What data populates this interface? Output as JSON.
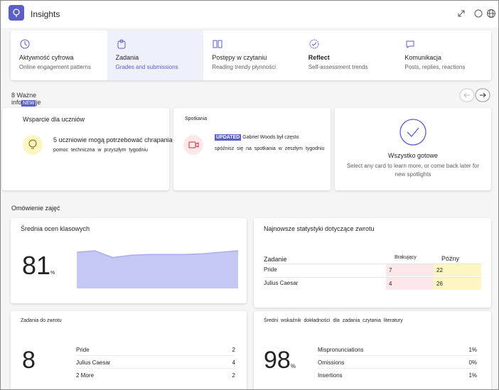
{
  "header": {
    "title": "Insights"
  },
  "tabs": [
    {
      "title": "Aktywność cyfrowa",
      "subtitle": "Online engagement patterns"
    },
    {
      "title": "Zadania",
      "subtitle": "Grades and submissions"
    },
    {
      "title": "Postępy w czytaniu",
      "subtitle": "Reading trendy płynności"
    },
    {
      "title": "Reflect",
      "subtitle": "Self-assessment trends"
    },
    {
      "title": "Komunikacja",
      "subtitle": "Posts, replies, reactions"
    }
  ],
  "spotlights": {
    "heading": "8 Ważne informacje",
    "badge": "NEW",
    "cards": [
      {
        "title": "Wsparcie dla uczniów",
        "text": "5 uczniowie mogą potrzebować chrapania",
        "text2": "pomoc techniczna w przyszłym tygodniu"
      },
      {
        "title": "Spotkania",
        "badge": "UPDATED",
        "text": "Gabriel Woods był często",
        "text2": "spóźnisz się na spotkania w zeszłym tygodniu"
      },
      {
        "title": "Wszystko gotowe",
        "text": "Select any card to learn more, or come back later for new spotlights"
      }
    ]
  },
  "overview": {
    "heading": "Omówienie zajęć",
    "average": {
      "title": "Średnia ocen klasowych",
      "value": "81",
      "unit": "%",
      "trend": [
        88,
        90,
        81,
        84,
        85,
        85,
        85,
        86,
        88,
        90
      ],
      "trend_ylim": [
        40,
        90
      ]
    },
    "returns": {
      "title": "Najnowsze statystyki dotyczące zwrotu",
      "headers": [
        "Zadanie",
        "Brakujący",
        "Późny"
      ],
      "rows": [
        [
          "Pride",
          "7",
          "22"
        ],
        [
          "Julius Caesar",
          "4",
          "26"
        ]
      ]
    },
    "to_return": {
      "title": "Zadania do zwrotu",
      "value": "8",
      "rows": [
        [
          "Pride",
          "2"
        ],
        [
          "Julius Caesar",
          "4"
        ],
        [
          "2 More",
          "2"
        ]
      ]
    },
    "accuracy": {
      "title": "Średni wskaźnik dokładności dla zadania czytania literatury",
      "value": "98",
      "unit": "%",
      "rows": [
        [
          "Mispronunciations",
          "1%"
        ],
        [
          "Omissions",
          "0%"
        ],
        [
          "Insertions",
          "1%"
        ]
      ]
    }
  }
}
